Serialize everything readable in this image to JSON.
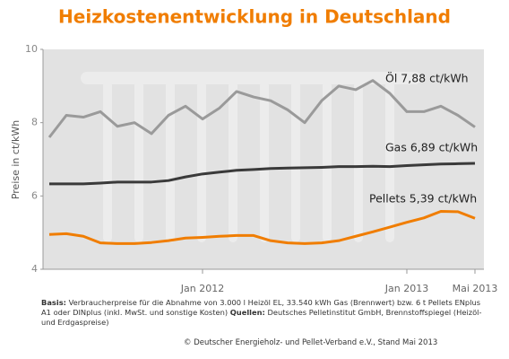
{
  "chart_data": {
    "type": "line",
    "title": "Heizkostenentwicklung in Deutschland",
    "y_label": "Preise in ct/kWh",
    "categories": [
      null,
      null,
      null,
      null,
      null,
      null,
      null,
      null,
      null,
      "Jan 2012",
      null,
      null,
      null,
      null,
      null,
      null,
      null,
      null,
      null,
      null,
      null,
      "Jan 2013",
      null,
      null,
      null,
      "Mai 2013"
    ],
    "series": [
      {
        "name": "Öl  7,88 ct/kWh",
        "color": "#9a9a9a",
        "values": [
          7.6,
          8.2,
          8.15,
          8.3,
          7.9,
          8.0,
          7.7,
          8.2,
          8.45,
          8.1,
          8.4,
          8.85,
          8.7,
          8.6,
          8.35,
          8.0,
          8.6,
          9.0,
          8.9,
          9.15,
          8.8,
          8.3,
          8.3,
          8.45,
          8.2,
          7.88
        ]
      },
      {
        "name": "Gas  6,89 ct/kWh",
        "color": "#3a3a3a",
        "values": [
          6.33,
          6.33,
          6.33,
          6.35,
          6.38,
          6.38,
          6.38,
          6.42,
          6.52,
          6.6,
          6.65,
          6.7,
          6.72,
          6.75,
          6.76,
          6.77,
          6.78,
          6.8,
          6.8,
          6.81,
          6.8,
          6.83,
          6.85,
          6.87,
          6.88,
          6.89
        ]
      },
      {
        "name": "Pellets  5,39 ct/kWh",
        "color": "#f07d00",
        "values": [
          4.95,
          4.97,
          4.9,
          4.72,
          4.7,
          4.7,
          4.73,
          4.78,
          4.85,
          4.87,
          4.9,
          4.92,
          4.92,
          4.78,
          4.72,
          4.7,
          4.72,
          4.78,
          4.9,
          5.02,
          5.15,
          5.28,
          5.4,
          5.58,
          5.57,
          5.39
        ]
      }
    ],
    "ylim": [
      4,
      10
    ],
    "yticks": [
      4,
      6,
      8,
      10
    ],
    "grid": false
  },
  "footnote": {
    "basis_label": "Basis:",
    "basis_text": "Verbraucherpreise für die Abnahme von 3.000 l Heizöl EL, 33.540 kWh Gas (Brennwert) bzw. 6 t Pellets ENplus A1 oder DINplus (inkl. MwSt. und sonstige Kosten)",
    "sources_label": "Quellen:",
    "sources_text": "Deutsches Pelletinstitut GmbH, Brennstoffspiegel (Heizöl- und Erdgaspreise)"
  },
  "copyright": "© Deutscher Energieholz- und Pellet-Verband e.V., Stand Mai 2013"
}
